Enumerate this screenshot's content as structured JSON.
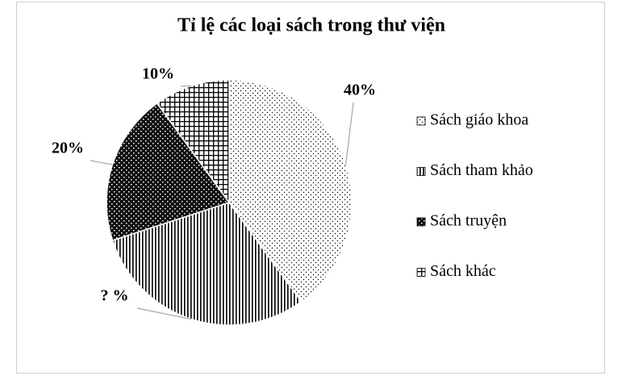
{
  "chart_data": {
    "type": "pie",
    "title": "Tỉ lệ các loại sách trong thư viện",
    "categories": [
      "Sách giáo khoa",
      "Sách tham khảo",
      "Sách truyện",
      "Sách khác"
    ],
    "values": [
      40,
      30,
      20,
      10
    ],
    "value_labels": [
      "40%",
      "? %",
      "20%",
      "10%"
    ],
    "legend": "right"
  }
}
